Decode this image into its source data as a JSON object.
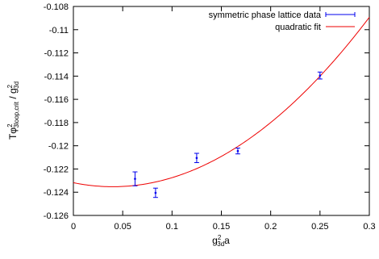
{
  "chart_data": {
    "type": "scatter",
    "xlim": [
      0,
      0.3
    ],
    "ylim": [
      -0.126,
      -0.108
    ],
    "grid": false,
    "legend_position": "top-right",
    "x_ticks": [
      "0",
      "0.05",
      "0.1",
      "0.15",
      "0.2",
      "0.25",
      "0.3"
    ],
    "y_ticks": [
      "-0.108",
      "-0.11",
      "-0.112",
      "-0.114",
      "-0.116",
      "-0.118",
      "-0.12",
      "-0.122",
      "-0.124",
      "-0.126"
    ],
    "xlabel": {
      "base": "g",
      "sup": "2",
      "sub": "3d",
      "tail": "a"
    },
    "ylabel": {
      "t1": "Tφ",
      "t1_sup": "2",
      "t1_sub": "3loop,crit",
      "sep": " / g",
      "t2_sup": "2",
      "t2_sub": "3d"
    },
    "series": [
      {
        "name": "symmetric phase lattice data",
        "kind": "errorbar",
        "color": "#0000ee",
        "points": [
          {
            "x": 0.0625,
            "y": -0.12285,
            "err": 0.0006
          },
          {
            "x": 0.0833,
            "y": -0.12405,
            "err": 0.0004
          },
          {
            "x": 0.125,
            "y": -0.12105,
            "err": 0.0004
          },
          {
            "x": 0.1667,
            "y": -0.12045,
            "err": 0.00025
          },
          {
            "x": 0.25,
            "y": -0.11395,
            "err": 0.0003
          }
        ]
      },
      {
        "name": "quadratic fit",
        "kind": "line",
        "color": "#ee0000",
        "function": "y = -0.12318 - 0.01727*x + 0.21587*x^2"
      }
    ]
  }
}
